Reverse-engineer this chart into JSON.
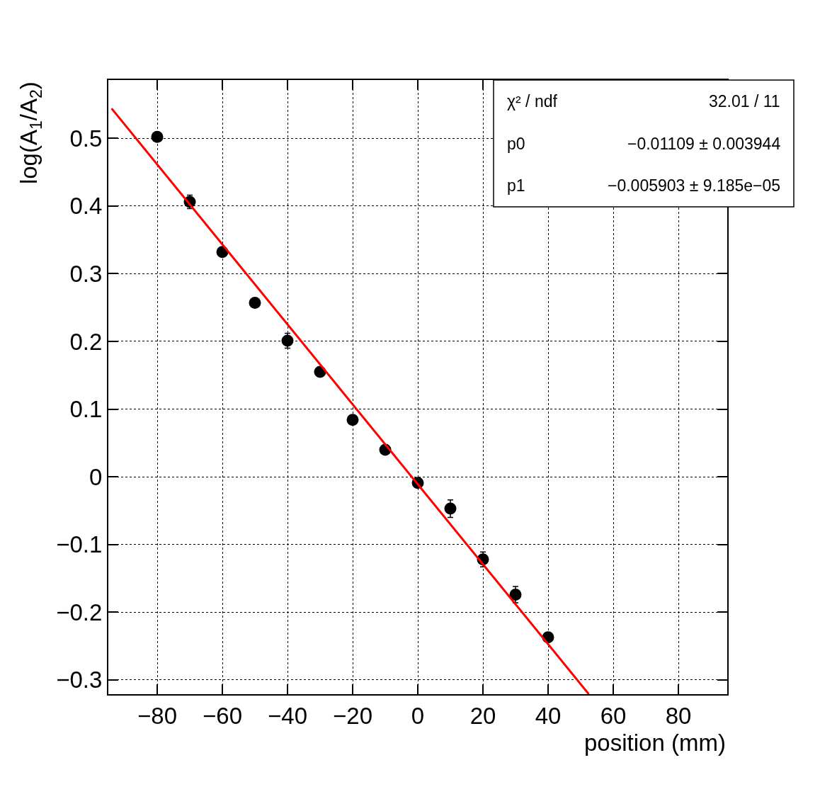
{
  "chart_data": {
    "type": "scatter",
    "xlabel": "position (mm)",
    "ylabel": "log(A$_{1}$/A$_{2}$)",
    "x": [
      -80,
      -70,
      -60,
      -50,
      -40,
      -30,
      -20,
      -10,
      0,
      10,
      20,
      30,
      40
    ],
    "series": [
      {
        "color": "#000000",
        "marker": "circle",
        "values": [
          0.502,
          0.406,
          0.332,
          0.257,
          0.201,
          0.155,
          0.084,
          0.04,
          -0.009,
          -0.047,
          -0.122,
          -0.174,
          -0.237
        ],
        "errors": [
          null,
          0.01,
          null,
          null,
          0.011,
          null,
          null,
          null,
          null,
          0.013,
          0.011,
          0.012,
          null
        ]
      },
      {
        "type": "line",
        "color": "#ff0000",
        "line_style": "solid",
        "x": [
          -94,
          52.5
        ],
        "values": [
          0.544,
          -0.321
        ]
      }
    ],
    "xlim": [
      -95,
      95
    ],
    "ylim": [
      -0.321,
      0.586
    ],
    "xticks": [
      {
        "value": -80,
        "label": "−80"
      },
      {
        "value": -60,
        "label": "−60"
      },
      {
        "value": -40,
        "label": "−40"
      },
      {
        "value": -20,
        "label": "−20"
      },
      0,
      20,
      40,
      60,
      80
    ],
    "yticks": [
      {
        "value": -0.3,
        "label": "−0.3"
      },
      {
        "value": -0.2,
        "label": "−0.2"
      },
      {
        "value": -0.1,
        "label": "−0.1"
      },
      0,
      0.1,
      0.2,
      0.3,
      0.4,
      0.5
    ],
    "grid": true,
    "annotations": [
      "χ² / ndf",
      "32.01 / 11",
      "p0",
      "−0.01109 ± 0.003944",
      "p1",
      "−0.005903 ± 9.185e−05"
    ]
  }
}
